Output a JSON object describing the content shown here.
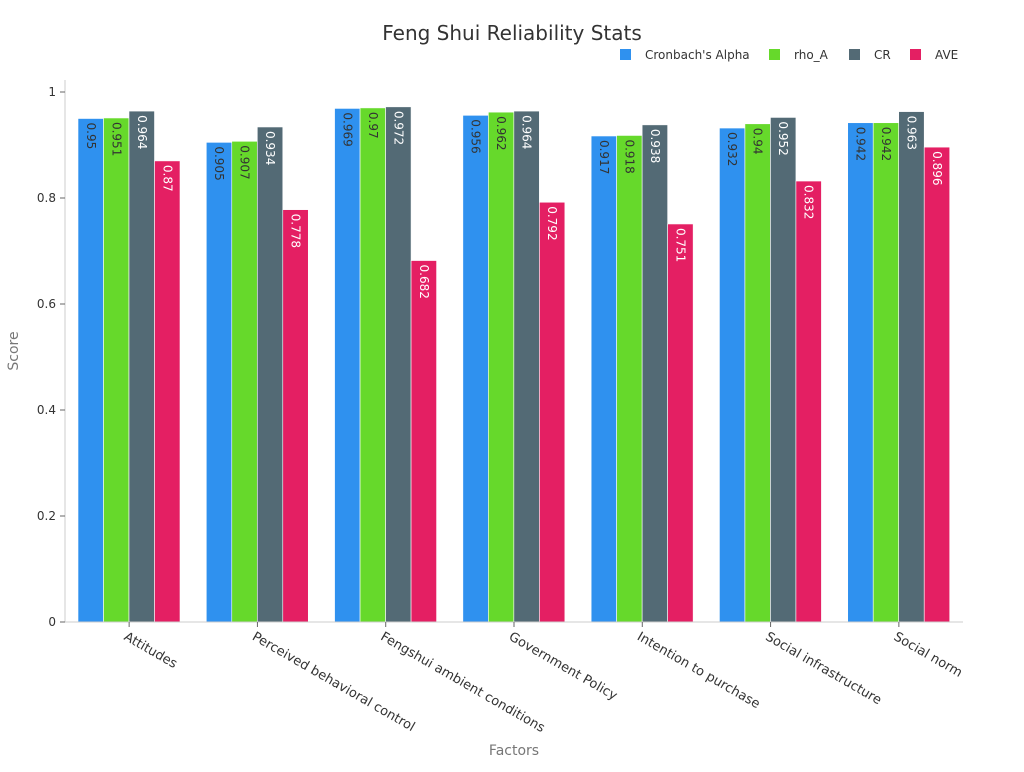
{
  "chart_data": {
    "type": "bar",
    "title": "Feng Shui Reliability Stats",
    "xlabel": "Factors",
    "ylabel": "Score",
    "ylim": [
      0,
      1
    ],
    "yticks": [
      0,
      0.2,
      0.4,
      0.6,
      0.8,
      1
    ],
    "ytick_labels": [
      "0",
      "0.2",
      "0.4",
      "0.6",
      "0.8",
      "1"
    ],
    "grid": false,
    "legend_position": "top-right",
    "categories": [
      "Attitudes",
      "Perceived behavioral control",
      "Fengshui ambient conditions",
      "Government Policy",
      "Intention to purchase",
      "Social infrastructure",
      "Social norm"
    ],
    "series": [
      {
        "name": "Cronbach's Alpha",
        "color": "#2f91ef",
        "label_color": "#333333",
        "values": [
          0.95,
          0.905,
          0.969,
          0.956,
          0.917,
          0.932,
          0.942
        ],
        "labels": [
          "0.95",
          "0.905",
          "0.969",
          "0.956",
          "0.917",
          "0.932",
          "0.942"
        ]
      },
      {
        "name": "rho_A",
        "color": "#66d92b",
        "label_color": "#333333",
        "values": [
          0.951,
          0.907,
          0.97,
          0.962,
          0.918,
          0.94,
          0.942
        ],
        "labels": [
          "0.951",
          "0.907",
          "0.97",
          "0.962",
          "0.918",
          "0.94",
          "0.942"
        ]
      },
      {
        "name": "CR",
        "color": "#536a75",
        "label_color": "#ffffff",
        "values": [
          0.964,
          0.934,
          0.972,
          0.964,
          0.938,
          0.952,
          0.963
        ],
        "labels": [
          "0.964",
          "0.934",
          "0.972",
          "0.964",
          "0.938",
          "0.952",
          "0.963"
        ]
      },
      {
        "name": "AVE",
        "color": "#e41f63",
        "label_color": "#ffffff",
        "values": [
          0.87,
          0.778,
          0.682,
          0.792,
          0.751,
          0.832,
          0.896
        ],
        "labels": [
          "0.87",
          "0.778",
          "0.682",
          "0.792",
          "0.751",
          "0.832",
          "0.896"
        ]
      }
    ]
  }
}
